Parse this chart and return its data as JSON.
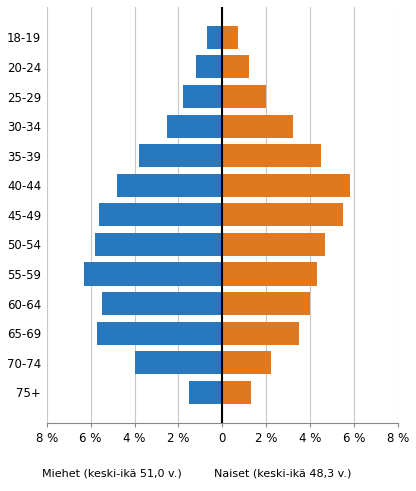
{
  "age_groups": [
    "18-19",
    "20-24",
    "25-29",
    "30-34",
    "35-39",
    "40-44",
    "45-49",
    "50-54",
    "55-59",
    "60-64",
    "65-69",
    "70-74",
    "75+"
  ],
  "men_values": [
    -0.7,
    -1.2,
    -1.8,
    -2.5,
    -3.8,
    -4.8,
    -5.6,
    -5.8,
    -6.3,
    -5.5,
    -5.7,
    -4.0,
    -1.5
  ],
  "women_values": [
    0.7,
    1.2,
    2.0,
    3.2,
    4.5,
    5.8,
    5.5,
    4.7,
    4.3,
    4.0,
    3.5,
    2.2,
    1.3
  ],
  "men_color": "#2878BE",
  "women_color": "#E07820",
  "xlabel_men": "Miehet (keski-ikä 51,0 v.)",
  "xlabel_women": "Naiset (keski-ikä 48,3 v.)",
  "xtick_labels": [
    "8 %",
    "6 %",
    "4 %",
    "2 %",
    "0",
    "2 %",
    "4 %",
    "6 %",
    "8 %"
  ],
  "xtick_values": [
    -8,
    -6,
    -4,
    -2,
    0,
    2,
    4,
    6,
    8
  ],
  "xlim": [
    -8,
    8
  ],
  "background_color": "#ffffff",
  "grid_color": "#c8c8c8"
}
